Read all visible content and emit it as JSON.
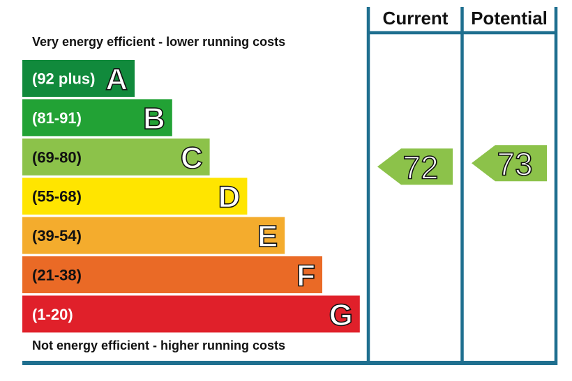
{
  "header": {
    "current": "Current",
    "potential": "Potential"
  },
  "notes": {
    "top": "Very energy efficient - lower running costs",
    "bottom": "Not energy efficient - higher running costs"
  },
  "colors": {
    "frame": "#1f6f8f",
    "text_white": "#ffffff",
    "text_dark": "#111111"
  },
  "chart_data": {
    "type": "bar",
    "categories": [
      "A",
      "B",
      "C",
      "D",
      "E",
      "F",
      "G"
    ],
    "bands": [
      {
        "letter": "A",
        "range": "(92 plus)",
        "color": "#118a3c"
      },
      {
        "letter": "B",
        "range": "(81-91)",
        "color": "#22a235"
      },
      {
        "letter": "C",
        "range": "(69-80)",
        "color": "#8cc24a"
      },
      {
        "letter": "D",
        "range": "(55-68)",
        "color": "#ffe500"
      },
      {
        "letter": "E",
        "range": "(39-54)",
        "color": "#f4ac2d"
      },
      {
        "letter": "F",
        "range": "(21-38)",
        "color": "#ea6a26"
      },
      {
        "letter": "G",
        "range": "(1-20)",
        "color": "#e0202a"
      }
    ],
    "current": {
      "value": 72,
      "band": "C"
    },
    "potential": {
      "value": 73,
      "band": "C"
    }
  }
}
